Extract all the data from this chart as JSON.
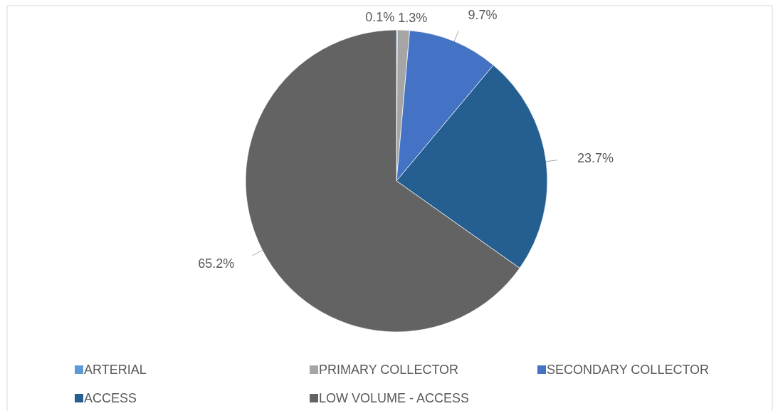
{
  "chart_data": {
    "type": "pie",
    "categories": [
      "ARTERIAL",
      "PRIMARY COLLECTOR",
      "SECONDARY COLLECTOR",
      "ACCESS",
      "LOW VOLUME - ACCESS"
    ],
    "values": [
      0.1,
      1.3,
      9.7,
      23.7,
      65.2
    ],
    "value_labels": [
      "0.1%",
      "1.3%",
      "9.7%",
      "23.7%",
      "65.2%"
    ],
    "colors": [
      "#5b9bd5",
      "#a5a5a5",
      "#4472c4",
      "#255e91",
      "#636363"
    ],
    "legend": "bottom"
  }
}
